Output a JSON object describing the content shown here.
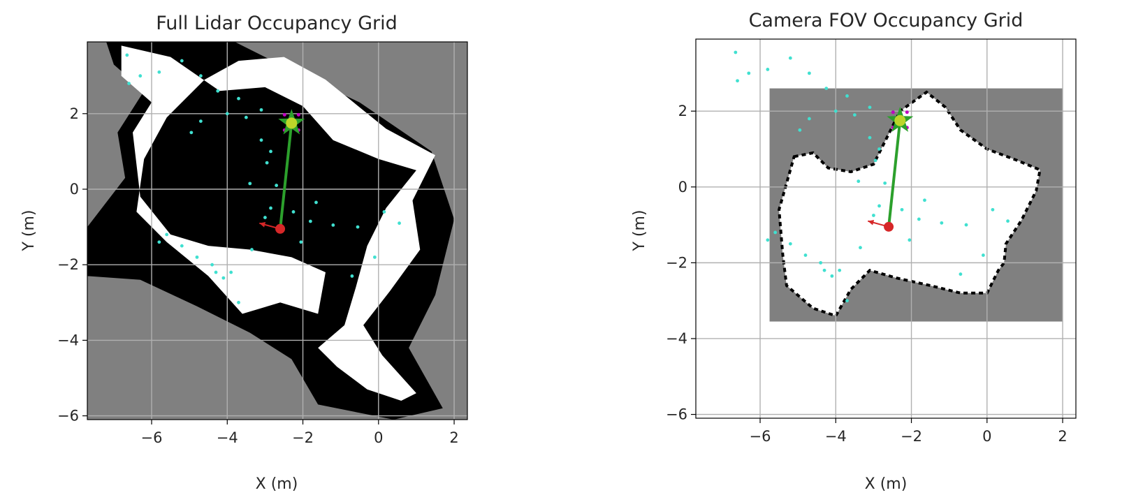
{
  "chart_data": [
    {
      "type": "heatmap",
      "title": "Full Lidar Occupancy Grid",
      "xlabel": "X (m)",
      "ylabel": "Y (m)",
      "xlim": [
        -7.7,
        2.35
      ],
      "ylim": [
        -6.1,
        3.9
      ],
      "xticks": [
        -6,
        -4,
        -2,
        0,
        2
      ],
      "yticks": [
        -6,
        -4,
        -2,
        0,
        2
      ],
      "xtick_labels": [
        "−6",
        "−4",
        "−2",
        "0",
        "2"
      ],
      "ytick_labels": [
        "−6",
        "−4",
        "−2",
        "0",
        "2"
      ],
      "grid": true,
      "grid_bounds": {
        "x": [
          -7.7,
          2.35
        ],
        "y": [
          -6.1,
          3.9
        ]
      },
      "colors": {
        "unknown": "#808080",
        "occupied": "#000000",
        "free": "#ffffff",
        "path": "#2ca02c",
        "robot": "#d62728",
        "goal_fill": "#bcd62a",
        "goal_star": "#2ca02c",
        "points": "#40e0d0",
        "goal_marks": "#c000c0"
      },
      "free_region": [
        [
          -6.8,
          3.8
        ],
        [
          -5.5,
          3.5
        ],
        [
          -4.2,
          2.6
        ],
        [
          -3.0,
          2.7
        ],
        [
          -2.0,
          2.2
        ],
        [
          -1.2,
          1.3
        ],
        [
          0.0,
          0.8
        ],
        [
          1.0,
          0.5
        ],
        [
          0.2,
          -0.5
        ],
        [
          -0.3,
          -1.5
        ],
        [
          -0.6,
          -2.6
        ],
        [
          -0.9,
          -3.6
        ],
        [
          -1.6,
          -4.2
        ],
        [
          -1.1,
          -4.7
        ],
        [
          -0.3,
          -5.3
        ],
        [
          0.6,
          -5.6
        ],
        [
          1.0,
          -5.4
        ],
        [
          0.1,
          -4.4
        ],
        [
          -0.4,
          -3.6
        ],
        [
          0.3,
          -2.7
        ],
        [
          1.1,
          -1.6
        ],
        [
          0.9,
          -0.3
        ],
        [
          1.5,
          0.9
        ],
        [
          0.2,
          1.6
        ],
        [
          -1.4,
          2.9
        ],
        [
          -2.5,
          3.5
        ],
        [
          -3.7,
          3.4
        ],
        [
          -4.6,
          2.9
        ],
        [
          -5.6,
          1.9
        ],
        [
          -6.2,
          0.8
        ],
        [
          -6.4,
          -0.6
        ],
        [
          -5.6,
          -1.4
        ],
        [
          -4.5,
          -2.3
        ],
        [
          -3.6,
          -3.3
        ],
        [
          -2.6,
          -3.0
        ],
        [
          -1.6,
          -3.3
        ],
        [
          -1.4,
          -2.2
        ],
        [
          -2.3,
          -1.8
        ],
        [
          -3.4,
          -1.6
        ],
        [
          -4.5,
          -1.5
        ],
        [
          -5.5,
          -1.2
        ],
        [
          -6.3,
          -0.2
        ],
        [
          -6.5,
          1.5
        ],
        [
          -6.0,
          2.3
        ],
        [
          -6.8,
          3.0
        ]
      ],
      "occupied_region": [
        [
          -7.2,
          3.9
        ],
        [
          -3.8,
          3.9
        ],
        [
          -2.2,
          3.1
        ],
        [
          -0.5,
          2.3
        ],
        [
          1.4,
          1.0
        ],
        [
          2.0,
          -0.8
        ],
        [
          1.5,
          -2.8
        ],
        [
          0.8,
          -4.2
        ],
        [
          1.7,
          -5.8
        ],
        [
          0.4,
          -6.1
        ],
        [
          -1.6,
          -5.7
        ],
        [
          -2.3,
          -4.5
        ],
        [
          -3.4,
          -3.8
        ],
        [
          -4.8,
          -3.1
        ],
        [
          -6.3,
          -2.4
        ],
        [
          -7.7,
          -2.3
        ],
        [
          -7.7,
          -1.0
        ],
        [
          -6.7,
          0.3
        ],
        [
          -6.9,
          1.5
        ],
        [
          -6.2,
          2.6
        ],
        [
          -7.0,
          3.3
        ]
      ],
      "points": [
        [
          -6.65,
          3.55
        ],
        [
          -6.3,
          3.0
        ],
        [
          -5.8,
          3.1
        ],
        [
          -6.6,
          2.8
        ],
        [
          -5.2,
          3.4
        ],
        [
          -4.7,
          3.0
        ],
        [
          -4.25,
          2.6
        ],
        [
          -3.7,
          2.4
        ],
        [
          -4.0,
          2.0
        ],
        [
          -3.5,
          1.9
        ],
        [
          -3.1,
          2.1
        ],
        [
          -4.7,
          1.8
        ],
        [
          -4.95,
          1.5
        ],
        [
          -3.1,
          1.3
        ],
        [
          -2.85,
          1.0
        ],
        [
          -2.95,
          0.7
        ],
        [
          -3.4,
          0.15
        ],
        [
          -2.7,
          0.1
        ],
        [
          -2.85,
          -0.5
        ],
        [
          -3.0,
          -0.75
        ],
        [
          -2.25,
          -0.6
        ],
        [
          -1.65,
          -0.35
        ],
        [
          -1.8,
          -0.85
        ],
        [
          -1.2,
          -0.95
        ],
        [
          -0.55,
          -1.0
        ],
        [
          0.15,
          -0.6
        ],
        [
          0.55,
          -0.9
        ],
        [
          -5.2,
          -1.5
        ],
        [
          -5.6,
          -1.2
        ],
        [
          -4.8,
          -1.8
        ],
        [
          -4.4,
          -2.0
        ],
        [
          -3.9,
          -2.2
        ],
        [
          -3.35,
          -1.6
        ],
        [
          -4.3,
          -2.2
        ],
        [
          -2.05,
          -1.4
        ],
        [
          -0.1,
          -1.8
        ],
        [
          -0.7,
          -2.3
        ],
        [
          -4.1,
          -2.35
        ],
        [
          -3.7,
          -3.0
        ],
        [
          -5.8,
          -1.4
        ]
      ],
      "robot": [
        -2.6,
        -1.05
      ],
      "robot_heading": [
        -3.15,
        -0.9
      ],
      "goal": [
        -2.3,
        1.75
      ],
      "path": [
        [
          -2.6,
          -1.05
        ],
        [
          -2.3,
          1.75
        ]
      ]
    },
    {
      "type": "heatmap",
      "title": "Camera FOV Occupancy Grid",
      "xlabel": "X (m)",
      "ylabel": "Y (m)",
      "xlim": [
        -7.7,
        2.35
      ],
      "ylim": [
        -6.1,
        3.9
      ],
      "xticks": [
        -6,
        -4,
        -2,
        0,
        2
      ],
      "yticks": [
        -6,
        -4,
        -2,
        0,
        2
      ],
      "xtick_labels": [
        "−6",
        "−4",
        "−2",
        "0",
        "2"
      ],
      "ytick_labels": [
        "−6",
        "−4",
        "−2",
        "0",
        "2"
      ],
      "grid": true,
      "grid_bounds": {
        "x": [
          -5.75,
          2.0
        ],
        "y": [
          -3.55,
          2.6
        ]
      },
      "colors": {
        "unknown": "#808080",
        "occupied": "#000000",
        "free": "#ffffff",
        "path": "#2ca02c",
        "robot": "#d62728",
        "goal_fill": "#bcd62a",
        "goal_star": "#2ca02c",
        "points": "#40e0d0",
        "goal_marks": "#c000c0"
      },
      "free_region": [
        [
          -5.1,
          0.8
        ],
        [
          -4.6,
          0.9
        ],
        [
          -4.2,
          0.5
        ],
        [
          -3.6,
          0.4
        ],
        [
          -3.0,
          0.6
        ],
        [
          -2.6,
          1.4
        ],
        [
          -2.3,
          2.0
        ],
        [
          -1.6,
          2.5
        ],
        [
          -1.1,
          2.1
        ],
        [
          -0.7,
          1.5
        ],
        [
          0.0,
          1.0
        ],
        [
          0.8,
          0.7
        ],
        [
          1.4,
          0.45
        ],
        [
          1.3,
          -0.1
        ],
        [
          0.9,
          -0.9
        ],
        [
          0.5,
          -1.5
        ],
        [
          0.45,
          -2.0
        ],
        [
          0.3,
          -2.2
        ],
        [
          0.0,
          -2.8
        ],
        [
          -0.7,
          -2.8
        ],
        [
          -1.5,
          -2.6
        ],
        [
          -2.4,
          -2.4
        ],
        [
          -3.1,
          -2.2
        ],
        [
          -3.6,
          -2.7
        ],
        [
          -4.0,
          -3.4
        ],
        [
          -4.6,
          -3.2
        ],
        [
          -5.3,
          -2.6
        ],
        [
          -5.4,
          -1.8
        ],
        [
          -5.5,
          -0.6
        ]
      ],
      "occupied_region": [],
      "points": [
        [
          -6.65,
          3.55
        ],
        [
          -6.3,
          3.0
        ],
        [
          -5.8,
          3.1
        ],
        [
          -6.6,
          2.8
        ],
        [
          -5.2,
          3.4
        ],
        [
          -4.7,
          3.0
        ],
        [
          -4.25,
          2.6
        ],
        [
          -3.7,
          2.4
        ],
        [
          -4.0,
          2.0
        ],
        [
          -3.5,
          1.9
        ],
        [
          -3.1,
          2.1
        ],
        [
          -4.7,
          1.8
        ],
        [
          -4.95,
          1.5
        ],
        [
          -3.1,
          1.3
        ],
        [
          -2.85,
          1.0
        ],
        [
          -2.95,
          0.7
        ],
        [
          -3.4,
          0.15
        ],
        [
          -2.7,
          0.1
        ],
        [
          -2.85,
          -0.5
        ],
        [
          -3.0,
          -0.75
        ],
        [
          -2.25,
          -0.6
        ],
        [
          -1.65,
          -0.35
        ],
        [
          -1.8,
          -0.85
        ],
        [
          -1.2,
          -0.95
        ],
        [
          -0.55,
          -1.0
        ],
        [
          0.15,
          -0.6
        ],
        [
          0.55,
          -0.9
        ],
        [
          -5.2,
          -1.5
        ],
        [
          -5.6,
          -1.2
        ],
        [
          -4.8,
          -1.8
        ],
        [
          -4.4,
          -2.0
        ],
        [
          -3.9,
          -2.2
        ],
        [
          -3.35,
          -1.6
        ],
        [
          -4.3,
          -2.2
        ],
        [
          -2.05,
          -1.4
        ],
        [
          -0.1,
          -1.8
        ],
        [
          -0.7,
          -2.3
        ],
        [
          -4.1,
          -2.35
        ],
        [
          -3.7,
          -3.0
        ],
        [
          -5.8,
          -1.4
        ]
      ],
      "robot": [
        -2.6,
        -1.05
      ],
      "robot_heading": [
        -3.15,
        -0.9
      ],
      "goal": [
        -2.3,
        1.75
      ],
      "path": [
        [
          -2.6,
          -1.05
        ],
        [
          -2.3,
          1.75
        ]
      ]
    }
  ]
}
